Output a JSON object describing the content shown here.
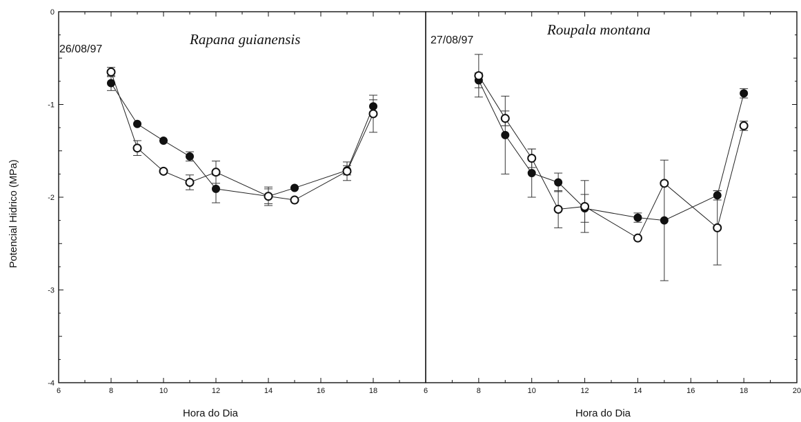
{
  "chart_data": [
    {
      "type": "scatter",
      "panel": "left",
      "date": "26/08/97",
      "species": "Rapana guianensis",
      "xlabel": "Hora do Dia",
      "ylabel": "Potencial Hidrico (MPa)",
      "xlim": [
        6,
        20
      ],
      "ylim": [
        -4,
        0
      ],
      "x_ticks": [
        6,
        8,
        10,
        12,
        14,
        16,
        18
      ],
      "y_ticks": [
        0,
        -1,
        -2,
        -3,
        -4
      ],
      "series": [
        {
          "marker": "filled-circle",
          "points": [
            {
              "x": 8,
              "y": -0.77,
              "err": 0.08
            },
            {
              "x": 9,
              "y": -1.21,
              "err": 0.0
            },
            {
              "x": 10,
              "y": -1.39,
              "err": 0.0
            },
            {
              "x": 11,
              "y": -1.56,
              "err": 0.05
            },
            {
              "x": 12,
              "y": -1.91,
              "err": 0.15
            },
            {
              "x": 14,
              "y": -1.99,
              "err": 0.08
            },
            {
              "x": 15,
              "y": -1.9,
              "err": 0.0
            },
            {
              "x": 17,
              "y": -1.71,
              "err": 0.05
            },
            {
              "x": 18,
              "y": -1.02,
              "err": 0.07
            }
          ]
        },
        {
          "marker": "open-circle",
          "points": [
            {
              "x": 8,
              "y": -0.65,
              "err": 0.05
            },
            {
              "x": 9,
              "y": -1.47,
              "err": 0.08
            },
            {
              "x": 10,
              "y": -1.72,
              "err": 0.0
            },
            {
              "x": 11,
              "y": -1.84,
              "err": 0.08
            },
            {
              "x": 12,
              "y": -1.73,
              "err": 0.12
            },
            {
              "x": 14,
              "y": -1.99,
              "err": 0.1
            },
            {
              "x": 15,
              "y": -2.03,
              "err": 0.0
            },
            {
              "x": 17,
              "y": -1.72,
              "err": 0.1
            },
            {
              "x": 18,
              "y": -1.1,
              "err": 0.2
            }
          ]
        }
      ]
    },
    {
      "type": "scatter",
      "panel": "right",
      "date": "27/08/97",
      "species": "Roupala montana",
      "xlabel": "Hora do Dia",
      "xlim": [
        6,
        20
      ],
      "ylim": [
        -4,
        0
      ],
      "x_ticks": [
        6,
        8,
        10,
        12,
        14,
        16,
        18,
        20
      ],
      "x_tick_labels": [
        "6",
        "8",
        "10",
        "12",
        "14",
        "16",
        "18",
        "20"
      ],
      "series": [
        {
          "marker": "filled-circle",
          "points": [
            {
              "x": 8,
              "y": -0.74,
              "err": 0.08
            },
            {
              "x": 9,
              "y": -1.33,
              "err": 0.42
            },
            {
              "x": 10,
              "y": -1.74,
              "err": 0.26
            },
            {
              "x": 11,
              "y": -1.84,
              "err": 0.1
            },
            {
              "x": 12,
              "y": -2.12,
              "err": 0.15
            },
            {
              "x": 14,
              "y": -2.22,
              "err": 0.05
            },
            {
              "x": 15,
              "y": -2.25,
              "err": 0.65
            },
            {
              "x": 17,
              "y": -1.98,
              "err": 0.05
            },
            {
              "x": 18,
              "y": -0.88,
              "err": 0.05
            }
          ]
        },
        {
          "marker": "open-circle",
          "points": [
            {
              "x": 8,
              "y": -0.69,
              "err": 0.23
            },
            {
              "x": 9,
              "y": -1.15,
              "err": 0.08
            },
            {
              "x": 10,
              "y": -1.58,
              "err": 0.1
            },
            {
              "x": 11,
              "y": -2.13,
              "err": 0.2
            },
            {
              "x": 12,
              "y": -2.1,
              "err": 0.28
            },
            {
              "x": 14,
              "y": -2.44,
              "err": 0.0
            },
            {
              "x": 15,
              "y": -1.85,
              "err": 0.0
            },
            {
              "x": 17,
              "y": -2.33,
              "err": 0.4
            },
            {
              "x": 18,
              "y": -1.23,
              "err": 0.05
            }
          ]
        }
      ]
    }
  ]
}
